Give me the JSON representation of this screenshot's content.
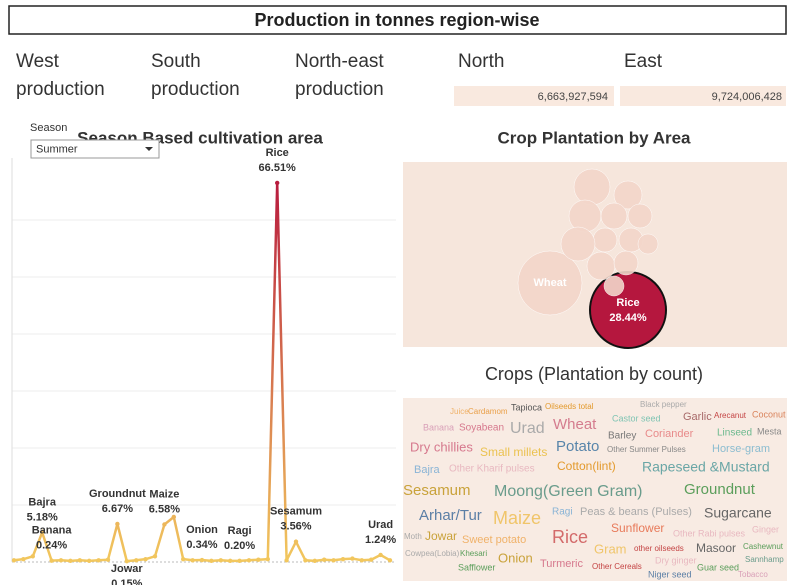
{
  "header": {
    "title": "Production in tonnes region-wise"
  },
  "kpis": [
    {
      "label": "West production"
    },
    {
      "label": "South production"
    },
    {
      "label": "North-east production"
    },
    {
      "label": "North",
      "value": "6,663,927,594"
    },
    {
      "label": "East",
      "value": "9,724,006,428"
    }
  ],
  "filter": {
    "label": "Season",
    "value": "Summer"
  },
  "chart_data": [
    {
      "type": "line",
      "title": "Season Based cultivation area",
      "categories": [
        null,
        null,
        null,
        "Bajra",
        "Banana",
        null,
        null,
        null,
        null,
        null,
        null,
        "Groundnut",
        "Jowar",
        null,
        null,
        null,
        "Maize",
        null,
        null,
        null,
        "Onion",
        null,
        null,
        null,
        "Ragi",
        null,
        null,
        null,
        "Rice",
        null,
        "Sesamum",
        null,
        null,
        null,
        null,
        null,
        null,
        null,
        null,
        "Urad",
        null
      ],
      "values": [
        0.3,
        0.5,
        1.0,
        5.18,
        0.24,
        0.3,
        0.2,
        0.3,
        0.2,
        0.3,
        0.4,
        6.67,
        0.15,
        0.3,
        0.5,
        1.0,
        6.58,
        7.9,
        0.5,
        0.3,
        0.34,
        0.2,
        0.3,
        0.2,
        0.2,
        0.3,
        0.4,
        0.5,
        66.51,
        0.3,
        3.56,
        0.3,
        0.2,
        0.4,
        0.3,
        0.5,
        0.6,
        0.3,
        0.4,
        1.24,
        0.3
      ],
      "value_labels": [
        null,
        null,
        null,
        "5.18%",
        "0.24%",
        null,
        null,
        null,
        null,
        null,
        null,
        "6.67%",
        "0.15%",
        null,
        null,
        null,
        "6.58%",
        null,
        null,
        null,
        "0.34%",
        null,
        null,
        null,
        "0.20%",
        null,
        null,
        null,
        "66.51%",
        null,
        "3.56%",
        null,
        null,
        null,
        null,
        null,
        null,
        null,
        null,
        "1.24%",
        null
      ],
      "color_low": "#f2c85e",
      "color_high": "#b81c3e",
      "ylim": [
        0,
        70
      ],
      "yticks": [
        0,
        10,
        20,
        30,
        40,
        50,
        60
      ],
      "grid": true
    },
    {
      "type": "bubble",
      "title": "Crop Plantation by Area",
      "categories": [
        "Rice",
        "Wheat",
        null,
        null,
        null,
        null,
        null,
        null,
        null,
        null,
        null,
        null,
        null,
        null
      ],
      "values": [
        28.44,
        20.2,
        6.38,
        3.86,
        5.04,
        3.33,
        2.83,
        2.83,
        5.69,
        2.83,
        3.86,
        2.83,
        1.97,
        1.97
      ],
      "value_labels": [
        "28.44%",
        null,
        null,
        null,
        null,
        null,
        null,
        null,
        null,
        null,
        null,
        null,
        null,
        null
      ],
      "colors": [
        "#b5173e",
        "#f3d6ca",
        "#f3d6ca",
        "#f3d6ca",
        "#f3d6ca",
        "#f3d6ca",
        "#f3d6ca",
        "#f3d6ca",
        "#f3d6ca",
        "#f3d6ca",
        "#f3d6ca",
        "#f3d6ca",
        "#f3d6ca",
        "#f3d6ca"
      ]
    },
    {
      "type": "wordcloud",
      "title": "Crops (Plantation by  count)",
      "words": [
        "Juice",
        "Cardamom",
        "Tapioca",
        "Oilseeds total",
        "Black pepper",
        "Castor seed",
        "Garlic",
        "Arecanut",
        "Coconut",
        "Banana",
        "Soyabean",
        "Urad",
        "Wheat",
        "Barley",
        "Coriander",
        "Linseed",
        "Mesta",
        "Dry chillies",
        "Small millets",
        "Potato",
        "Other Summer Pulses",
        "Horse-gram",
        "Bajra",
        "Other Kharif pulses",
        "Cotton(lint)",
        "Rapeseed &Mustard",
        "Sesamum",
        "Moong(Green Gram)",
        "Groundnut",
        "Arhar/Tur",
        "Maize",
        "Ragi",
        "Peas & beans (Pulses)",
        "Sugarcane",
        "Moth",
        "Jowar",
        "Sweet potato",
        "Rice",
        "Sunflower",
        "Other Rabi pulses",
        "Ginger",
        "Gram",
        "other oilseeds",
        "Masoor",
        "Cashewnut",
        "Cowpea(Lobia)",
        "Khesari",
        "Onion",
        "Turmeric",
        "Other Cereals",
        "Dry ginger",
        "Sannhamp",
        "Safflower",
        "Niger seed",
        "Guar seed",
        "Tobacco"
      ],
      "colors": [
        "#f0b26a",
        "#e9a04a",
        "#555555",
        "#e39a2d",
        "#aaaaaa",
        "#7fc4b3",
        "#a86a6a",
        "#c44444",
        "#d9825a",
        "#d9a0b8",
        "#d6788d",
        "#aaaaaa",
        "#d47c8e",
        "#777777",
        "#e88a8a",
        "#6bb98e",
        "#888888",
        "#d6788d",
        "#ebc250",
        "#5885aa",
        "#888888",
        "#8bbcd0",
        "#8ab4d6",
        "#e8b8c0",
        "#e39a2d",
        "#6aa6a6",
        "#c9a23a",
        "#6a9c8c",
        "#5b9e5b",
        "#5b7fa6",
        "#f0c56a",
        "#8ab4d6",
        "#aaaaaa",
        "#666666",
        "#aaaaaa",
        "#c9a23a",
        "#f0b26a",
        "#d36a6a",
        "#e87a5a",
        "#e8b8c0",
        "#e8b8c0",
        "#f0c56a",
        "#c44444",
        "#666666",
        "#5b9e5b",
        "#aaaaaa",
        "#5b9e5b",
        "#c9a23a",
        "#d6788d",
        "#c44444",
        "#e8b8c0",
        "#6a9c8c",
        "#5b9e5b",
        "#5b7fa6",
        "#5b9e5b",
        "#d9a0b8"
      ]
    }
  ]
}
